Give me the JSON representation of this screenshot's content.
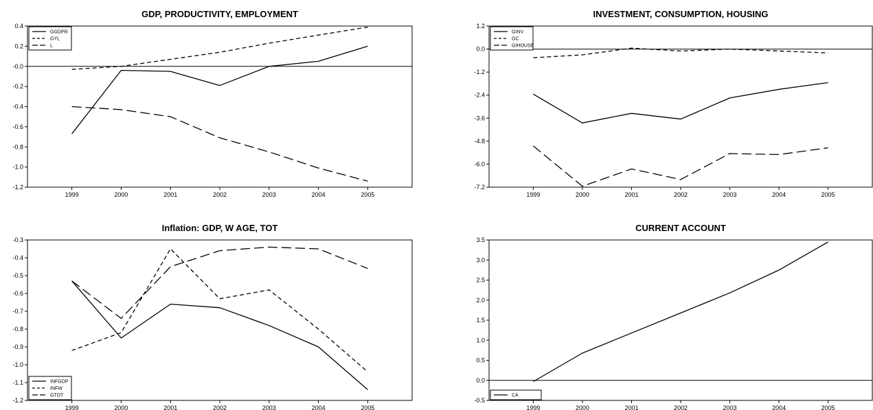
{
  "chart_data": [
    {
      "type": "line",
      "title": "GDP, PRODUCTIVITY, EMPLOYMENT",
      "x": [
        1999,
        2000,
        2001,
        2002,
        2003,
        2004,
        2005
      ],
      "x_tick_labels": [
        "1999",
        "2000",
        "2001",
        "2002",
        "2003",
        "2004",
        "2005"
      ],
      "xlim": [
        1998.1,
        2005.9
      ],
      "ylim": [
        -1.2,
        0.4
      ],
      "y_ticks": [
        0.4,
        0.2,
        0.0,
        -0.2,
        -0.4,
        -0.6,
        -0.8,
        -1.0,
        -1.2
      ],
      "y_tick_labels": [
        "0.4",
        "0.2",
        "-0.0",
        "-0.2",
        "-0.4",
        "-0.6",
        "-0.8",
        "-1.0",
        "-1.2"
      ],
      "zero_line": true,
      "legend_position": "top-left",
      "series": [
        {
          "name": "GGDPR",
          "dash": "solid",
          "values": [
            -0.67,
            -0.04,
            -0.05,
            -0.19,
            0.0,
            0.05,
            0.2
          ]
        },
        {
          "name": "GYL",
          "dash": "short",
          "values": [
            -0.03,
            0.0,
            0.07,
            0.14,
            0.23,
            0.31,
            0.39
          ]
        },
        {
          "name": "L",
          "dash": "long",
          "values": [
            -0.4,
            -0.43,
            -0.5,
            -0.71,
            -0.85,
            -1.01,
            -1.14
          ]
        }
      ]
    },
    {
      "type": "line",
      "title": "INVESTMENT, CONSUMPTION, HOUSING",
      "x": [
        1999,
        2000,
        2001,
        2002,
        2003,
        2004,
        2005
      ],
      "x_tick_labels": [
        "1999",
        "2000",
        "2001",
        "2002",
        "2003",
        "2004",
        "2005"
      ],
      "xlim": [
        1998.1,
        2005.9
      ],
      "ylim": [
        -7.2,
        1.2
      ],
      "y_ticks": [
        1.2,
        0.0,
        -1.2,
        -2.4,
        -3.6,
        -4.8,
        -6.0,
        -7.2
      ],
      "y_tick_labels": [
        "1.2",
        "0.0",
        "-1.2",
        "-2.4",
        "-3.6",
        "-4.8",
        "-6.0",
        "-7.2"
      ],
      "zero_line": true,
      "legend_position": "top-left",
      "series": [
        {
          "name": "GINV",
          "dash": "solid",
          "values": [
            -2.35,
            -3.85,
            -3.35,
            -3.65,
            -2.55,
            -2.1,
            -1.75
          ]
        },
        {
          "name": "GC",
          "dash": "short",
          "values": [
            -0.45,
            -0.3,
            0.05,
            -0.1,
            0.0,
            -0.1,
            -0.2
          ]
        },
        {
          "name": "GIHOUSE",
          "dash": "long",
          "values": [
            -5.05,
            -7.15,
            -6.25,
            -6.8,
            -5.45,
            -5.5,
            -5.15
          ]
        }
      ]
    },
    {
      "type": "line",
      "title": "Inflation: GDP, W AGE, TOT",
      "x": [
        1999,
        2000,
        2001,
        2002,
        2003,
        2004,
        2005
      ],
      "x_tick_labels": [
        "1999",
        "2000",
        "2001",
        "2002",
        "2003",
        "2004",
        "2005"
      ],
      "xlim": [
        1998.1,
        2005.9
      ],
      "ylim": [
        -1.2,
        -0.3
      ],
      "y_ticks": [
        -0.3,
        -0.4,
        -0.5,
        -0.6,
        -0.7,
        -0.8,
        -0.9,
        -1.0,
        -1.1,
        -1.2
      ],
      "y_tick_labels": [
        "-0.3",
        "-0.4",
        "-0.5",
        "-0.6",
        "-0.7",
        "-0.8",
        "-0.9",
        "-1.0",
        "-1.1",
        "-1.2"
      ],
      "zero_line": false,
      "legend_position": "bottom-left",
      "series": [
        {
          "name": "INFGDP",
          "dash": "solid",
          "values": [
            -0.53,
            -0.85,
            -0.66,
            -0.68,
            -0.78,
            -0.9,
            -1.14
          ]
        },
        {
          "name": "INFW",
          "dash": "short",
          "values": [
            -0.92,
            -0.82,
            -0.35,
            -0.63,
            -0.58,
            -0.8,
            -1.04
          ]
        },
        {
          "name": "GTOT",
          "dash": "long",
          "values": [
            -0.53,
            -0.74,
            -0.45,
            -0.36,
            -0.34,
            -0.35,
            -0.46
          ]
        }
      ]
    },
    {
      "type": "line",
      "title": "CURRENT ACCOUNT",
      "x": [
        1999,
        2000,
        2001,
        2002,
        2003,
        2004,
        2005
      ],
      "x_tick_labels": [
        "1999",
        "2000",
        "2001",
        "2002",
        "2003",
        "2004",
        "2005"
      ],
      "xlim": [
        1998.1,
        2005.9
      ],
      "ylim": [
        -0.5,
        3.5
      ],
      "y_ticks": [
        3.5,
        3.0,
        2.5,
        2.0,
        1.5,
        1.0,
        0.5,
        0.0,
        -0.5
      ],
      "y_tick_labels": [
        "3.5",
        "3.0",
        "2.5",
        "2.0",
        "1.5",
        "1.0",
        "0.5",
        "0.0",
        "-0.5"
      ],
      "zero_line": true,
      "legend_position": "bottom-left",
      "series": [
        {
          "name": "CA",
          "dash": "solid",
          "values": [
            -0.03,
            0.68,
            1.18,
            1.68,
            2.18,
            2.75,
            3.45
          ]
        }
      ]
    }
  ]
}
